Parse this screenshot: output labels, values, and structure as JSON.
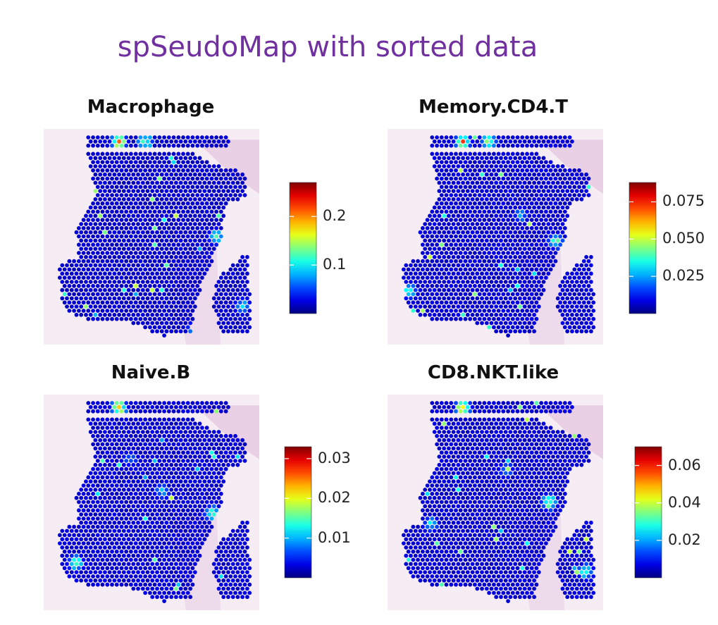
{
  "title": "spSeudoMap with sorted data",
  "chart_data": [
    {
      "type": "heatmap",
      "title": "Macrophage",
      "colormap": "jet",
      "colorbar_range": [
        0,
        0.27
      ],
      "colorbar_ticks": [
        0.1,
        0.2
      ],
      "colorbar_tick_labels": [
        "0.1",
        "0.2"
      ],
      "background_level": 0.01,
      "hotspots": [
        {
          "u": 0.35,
          "v": 0.06,
          "value": 0.25
        },
        {
          "u": 0.47,
          "v": 0.06,
          "value": 0.18
        },
        {
          "u": 0.8,
          "v": 0.5,
          "value": 0.15
        },
        {
          "u": 0.92,
          "v": 0.82,
          "value": 0.12
        },
        {
          "u": 0.7,
          "v": 0.93,
          "value": 0.1
        }
      ]
    },
    {
      "type": "heatmap",
      "title": "Memory.CD4.T",
      "colormap": "jet",
      "colorbar_range": [
        0,
        0.088
      ],
      "colorbar_ticks": [
        0.025,
        0.05,
        0.075
      ],
      "colorbar_tick_labels": [
        "0.025",
        "0.050",
        "0.075"
      ],
      "background_level": 0.004,
      "hotspots": [
        {
          "u": 0.35,
          "v": 0.06,
          "value": 0.08
        },
        {
          "u": 0.47,
          "v": 0.06,
          "value": 0.06
        },
        {
          "u": 0.78,
          "v": 0.52,
          "value": 0.05
        },
        {
          "u": 0.1,
          "v": 0.75,
          "value": 0.045
        },
        {
          "u": 0.62,
          "v": 0.4,
          "value": 0.03
        }
      ]
    },
    {
      "type": "heatmap",
      "title": "Naive.B",
      "colormap": "jet",
      "colorbar_range": [
        0,
        0.033
      ],
      "colorbar_ticks": [
        0.01,
        0.02,
        0.03
      ],
      "colorbar_tick_labels": [
        "0.01",
        "0.02",
        "0.03"
      ],
      "background_level": 0.0015,
      "hotspots": [
        {
          "u": 0.35,
          "v": 0.06,
          "value": 0.03
        },
        {
          "u": 0.15,
          "v": 0.78,
          "value": 0.02
        },
        {
          "u": 0.78,
          "v": 0.55,
          "value": 0.02
        },
        {
          "u": 0.55,
          "v": 0.45,
          "value": 0.012
        },
        {
          "u": 0.4,
          "v": 0.3,
          "value": 0.01
        }
      ]
    },
    {
      "type": "heatmap",
      "title": "CD8.NKT.like",
      "colormap": "jet",
      "colorbar_range": [
        0,
        0.07
      ],
      "colorbar_ticks": [
        0.02,
        0.04,
        0.06
      ],
      "colorbar_tick_labels": [
        "0.02",
        "0.04",
        "0.06"
      ],
      "background_level": 0.003,
      "hotspots": [
        {
          "u": 0.35,
          "v": 0.06,
          "value": 0.065
        },
        {
          "u": 0.75,
          "v": 0.5,
          "value": 0.05
        },
        {
          "u": 0.92,
          "v": 0.82,
          "value": 0.04
        },
        {
          "u": 0.2,
          "v": 0.6,
          "value": 0.03
        },
        {
          "u": 0.55,
          "v": 0.35,
          "value": 0.025
        }
      ]
    }
  ]
}
